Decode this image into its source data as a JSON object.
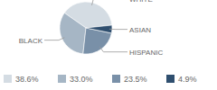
{
  "chart_data": {
    "type": "pie",
    "categories": [
      "WHITE",
      "BLACK",
      "HISPANIC",
      "ASIAN"
    ],
    "values": [
      38.6,
      33.0,
      23.5,
      4.9
    ],
    "value_labels": [
      "38.6%",
      "33.0%",
      "23.5%",
      "4.9%"
    ],
    "colors": [
      "#d4dce3",
      "#a6b6c5",
      "#7990a8",
      "#2f4f6f"
    ]
  }
}
